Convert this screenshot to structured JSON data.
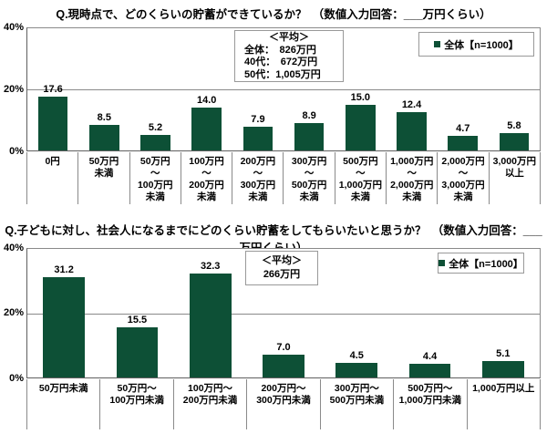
{
  "page": {
    "background": "#ffffff",
    "text_color": "#000000"
  },
  "chart_data": [
    {
      "type": "bar",
      "title": "Q.現時点で、どのくらいの貯蓄ができているか？　（数値入力回答：___万円くらい）",
      "categories": [
        "0円",
        "50万円\n未満",
        "50万円\n～\n100万円\n未満",
        "100万円\n～\n200万円\n未満",
        "200万円\n～\n300万円\n未満",
        "300万円\n～\n500万円\n未満",
        "500万円\n～\n1,000万円\n未満",
        "1,000万円\n～\n2,000万円\n未満",
        "2,000万円\n～\n3,000万円\n未満",
        "3,000万円\n以上"
      ],
      "values": [
        17.6,
        8.5,
        5.2,
        14.0,
        7.9,
        8.9,
        15.0,
        12.4,
        4.7,
        5.8
      ],
      "series_name": "全体【n=1000】",
      "unit": "%",
      "ylim": [
        0,
        40
      ],
      "yticks": [
        "40%",
        "20%",
        "0%"
      ],
      "grid": "horizontal gridline at 20%",
      "legend_position": "top-right inside plot",
      "bar_color": "#0d5036",
      "annotation": {
        "lines": [
          "＜平均＞",
          "全体：　826万円",
          "40代：　672万円",
          "50代：1,005万円"
        ]
      }
    },
    {
      "type": "bar",
      "title": "Q.子どもに対し、社会人になるまでにどのくらい貯蓄をしてもらいたいと思うか？　（数値入力回答：___万円くらい）",
      "categories": [
        "50万円未満",
        "50万円～\n100万円未満",
        "100万円～\n200万円未満",
        "200万円～\n300万円未満",
        "300万円～\n500万円未満",
        "500万円～\n1,000万円未満",
        "1,000万円以上"
      ],
      "values": [
        31.2,
        15.5,
        32.3,
        7.0,
        4.5,
        4.4,
        5.1
      ],
      "series_name": "全体【n=1000】",
      "unit": "%",
      "ylim": [
        0,
        40
      ],
      "yticks": [
        "40%",
        "20%",
        "0%"
      ],
      "grid": "horizontal gridline at 20%",
      "legend_position": "top-right inside plot",
      "bar_color": "#0d5036",
      "annotation": {
        "lines": [
          "＜平均＞",
          "266万円"
        ]
      }
    }
  ]
}
